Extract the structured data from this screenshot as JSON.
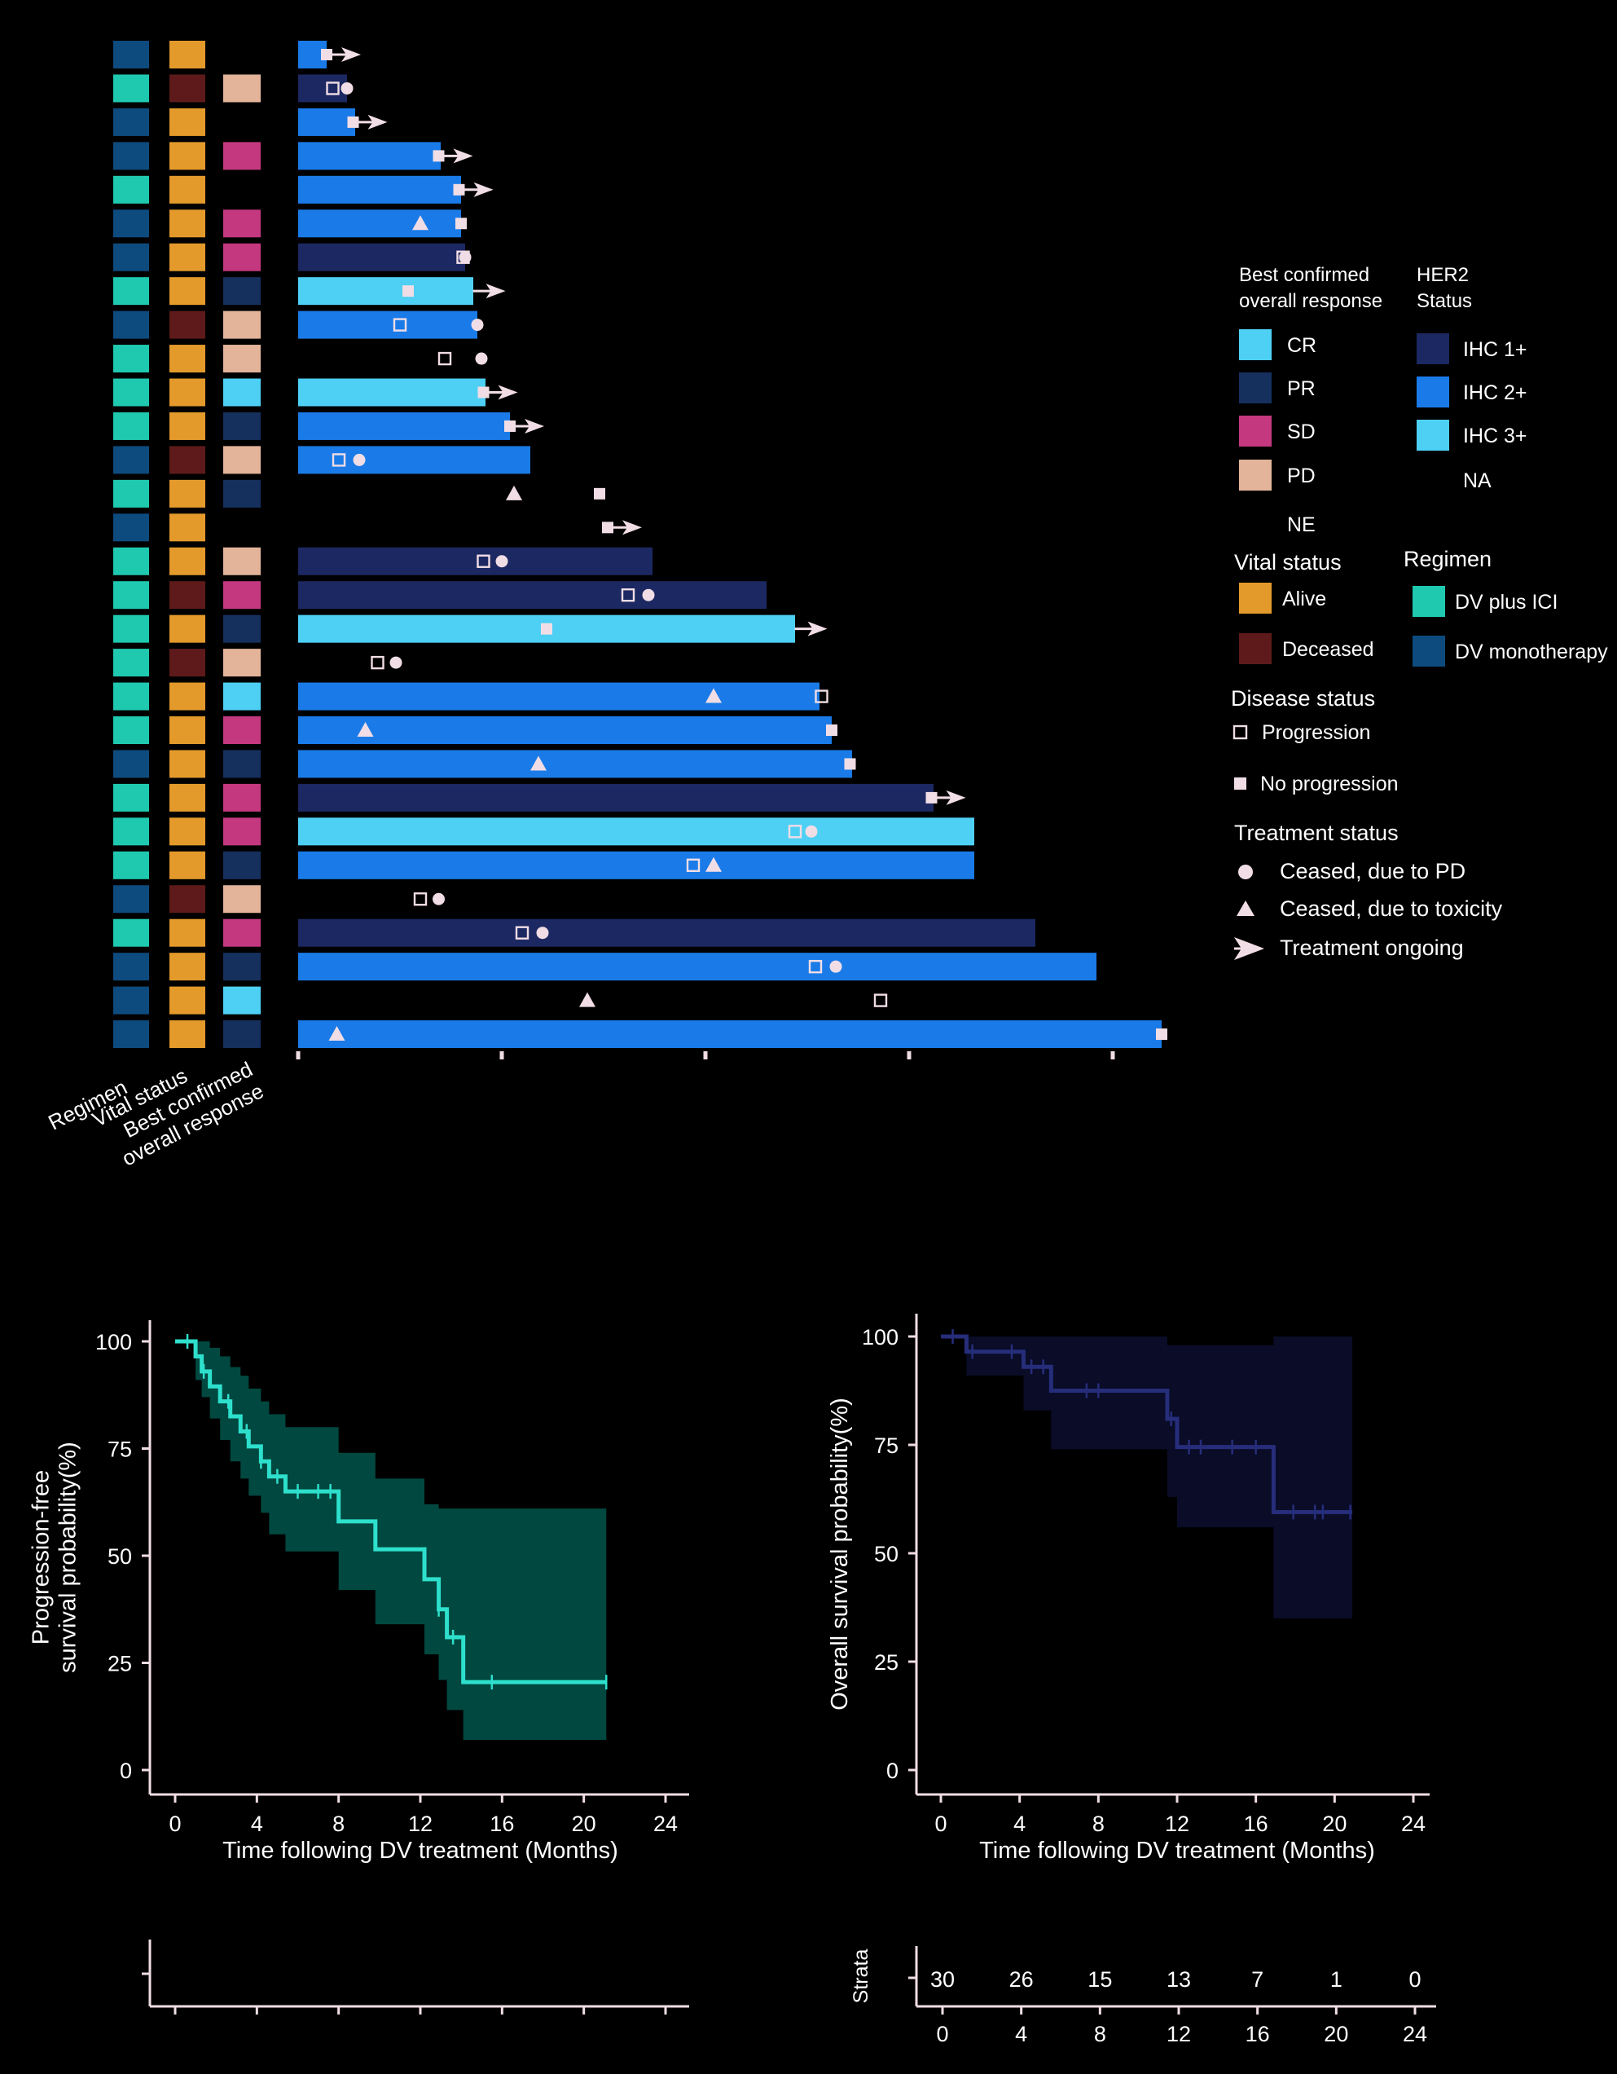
{
  "colors": {
    "background": "#000000",
    "CR": "#4ed0f5",
    "PR": "#16305e",
    "SD": "#c4387f",
    "PD": "#e3b49a",
    "IHC1": "#1c2862",
    "IHC2": "#1a7be8",
    "IHC3": "#4ed0f5",
    "Alive": "#e39a2b",
    "Deceased": "#5e1a1a",
    "DVplusICI": "#1fc9b0",
    "DVmono": "#0d4b7e",
    "marker": "#f1dde5",
    "pfs_line": "#2ee0cc",
    "pfs_band": "#004840",
    "os_line": "#262d7a",
    "os_band": "#0a0c28",
    "axis": "#f1dde5"
  },
  "swimmer": {
    "column_labels": [
      "Regimen",
      "Vital status",
      "Best confirmed overall response"
    ],
    "column_label_lines": {
      "regimen": [
        "Regimen"
      ],
      "vital": [
        "Vital status"
      ],
      "bor": [
        "Best confirmed",
        "overall response"
      ]
    },
    "axis_max": 22,
    "patients": [
      {
        "regimen": "DV monotherapy",
        "vital": "Alive",
        "bor": "NE",
        "her2": "IHC 2+",
        "duration": 0.7,
        "markers": [
          {
            "type": "sq_filled",
            "t": 0.7
          },
          {
            "type": "arrow",
            "t": 0.9
          }
        ]
      },
      {
        "regimen": "DV plus ICI",
        "vital": "Deceased",
        "bor": "PD",
        "her2": "IHC 1+",
        "duration": 1.2,
        "markers": [
          {
            "type": "sq_open",
            "t": 0.85
          },
          {
            "type": "circle",
            "t": 1.2
          }
        ]
      },
      {
        "regimen": "DV monotherapy",
        "vital": "Alive",
        "bor": "NE",
        "her2": "IHC 2+",
        "duration": 1.4,
        "markers": [
          {
            "type": "sq_filled",
            "t": 1.35
          },
          {
            "type": "arrow",
            "t": 1.55
          }
        ]
      },
      {
        "regimen": "DV monotherapy",
        "vital": "Alive",
        "bor": "SD",
        "her2": "IHC 2+",
        "duration": 3.5,
        "markers": [
          {
            "type": "sq_filled",
            "t": 3.45
          },
          {
            "type": "arrow",
            "t": 3.65
          }
        ]
      },
      {
        "regimen": "DV plus ICI",
        "vital": "Alive",
        "bor": "NE",
        "her2": "IHC 2+",
        "duration": 4.0,
        "markers": [
          {
            "type": "sq_filled",
            "t": 3.95
          },
          {
            "type": "arrow",
            "t": 4.15
          }
        ]
      },
      {
        "regimen": "DV monotherapy",
        "vital": "Alive",
        "bor": "SD",
        "her2": "IHC 2+",
        "duration": 4.0,
        "markers": [
          {
            "type": "triangle",
            "t": 3.0
          },
          {
            "type": "sq_filled",
            "t": 4.0
          }
        ]
      },
      {
        "regimen": "DV monotherapy",
        "vital": "Alive",
        "bor": "SD",
        "her2": "IHC 1+",
        "duration": 4.1,
        "markers": [
          {
            "type": "sq_open",
            "t": 4.05
          },
          {
            "type": "circle",
            "t": 4.1
          }
        ]
      },
      {
        "regimen": "DV plus ICI",
        "vital": "Alive",
        "bor": "PR",
        "her2": "IHC 3+",
        "duration": 4.3,
        "markers": [
          {
            "type": "sq_filled",
            "t": 2.7
          },
          {
            "type": "arrow",
            "t": 4.45
          }
        ]
      },
      {
        "regimen": "DV monotherapy",
        "vital": "Deceased",
        "bor": "PD",
        "her2": "IHC 2+",
        "duration": 4.4,
        "markers": [
          {
            "type": "sq_open",
            "t": 2.5
          },
          {
            "type": "circle",
            "t": 4.4
          }
        ]
      },
      {
        "regimen": "DV plus ICI",
        "vital": "Alive",
        "bor": "PD",
        "her2": "NA",
        "duration": 0,
        "markers": [
          {
            "type": "sq_open",
            "t": 3.6
          },
          {
            "type": "circle",
            "t": 4.5
          }
        ]
      },
      {
        "regimen": "DV plus ICI",
        "vital": "Alive",
        "bor": "CR",
        "her2": "IHC 3+",
        "duration": 4.6,
        "markers": [
          {
            "type": "sq_filled",
            "t": 4.55
          },
          {
            "type": "arrow",
            "t": 4.75
          }
        ]
      },
      {
        "regimen": "DV plus ICI",
        "vital": "Alive",
        "bor": "PR",
        "her2": "IHC 2+",
        "duration": 5.2,
        "markers": [
          {
            "type": "sq_filled",
            "t": 5.2
          },
          {
            "type": "arrow",
            "t": 5.4
          }
        ]
      },
      {
        "regimen": "DV monotherapy",
        "vital": "Deceased",
        "bor": "PD",
        "her2": "IHC 2+",
        "duration": 5.7,
        "markers": [
          {
            "type": "sq_open",
            "t": 1.0
          },
          {
            "type": "circle",
            "t": 1.5
          }
        ]
      },
      {
        "regimen": "DV plus ICI",
        "vital": "Alive",
        "bor": "PR",
        "her2": "NA",
        "duration": 0,
        "markers": [
          {
            "type": "triangle",
            "t": 5.3
          },
          {
            "type": "sq_filled",
            "t": 7.4
          }
        ]
      },
      {
        "regimen": "DV monotherapy",
        "vital": "Alive",
        "bor": "NE",
        "her2": "NA",
        "duration": 0,
        "markers": [
          {
            "type": "sq_filled",
            "t": 7.6
          },
          {
            "type": "arrow",
            "t": 7.8
          }
        ]
      },
      {
        "regimen": "DV plus ICI",
        "vital": "Alive",
        "bor": "PD",
        "her2": "IHC 1+",
        "duration": 8.7,
        "markers": [
          {
            "type": "sq_open",
            "t": 4.55
          },
          {
            "type": "circle",
            "t": 5.0
          }
        ]
      },
      {
        "regimen": "DV plus ICI",
        "vital": "Deceased",
        "bor": "SD",
        "her2": "IHC 1+",
        "duration": 11.5,
        "markers": [
          {
            "type": "sq_open",
            "t": 8.1
          },
          {
            "type": "circle",
            "t": 8.6
          }
        ]
      },
      {
        "regimen": "DV plus ICI",
        "vital": "Alive",
        "bor": "PR",
        "her2": "IHC 3+",
        "duration": 12.2,
        "markers": [
          {
            "type": "sq_filled",
            "t": 6.1
          },
          {
            "type": "arrow",
            "t": 12.35
          }
        ]
      },
      {
        "regimen": "DV plus ICI",
        "vital": "Deceased",
        "bor": "PD",
        "her2": "NA",
        "duration": 0,
        "markers": [
          {
            "type": "sq_open",
            "t": 1.95
          },
          {
            "type": "circle",
            "t": 2.4
          }
        ]
      },
      {
        "regimen": "DV plus ICI",
        "vital": "Alive",
        "bor": "CR",
        "her2": "IHC 2+",
        "duration": 12.8,
        "markers": [
          {
            "type": "triangle",
            "t": 10.2
          },
          {
            "type": "sq_open",
            "t": 12.85
          }
        ]
      },
      {
        "regimen": "DV plus ICI",
        "vital": "Alive",
        "bor": "SD",
        "her2": "IHC 2+",
        "duration": 13.1,
        "markers": [
          {
            "type": "triangle",
            "t": 1.65
          },
          {
            "type": "sq_filled",
            "t": 13.1
          }
        ]
      },
      {
        "regimen": "DV monotherapy",
        "vital": "Alive",
        "bor": "PR",
        "her2": "IHC 2+",
        "duration": 13.6,
        "markers": [
          {
            "type": "triangle",
            "t": 5.9
          },
          {
            "type": "sq_filled",
            "t": 13.55
          }
        ]
      },
      {
        "regimen": "DV plus ICI",
        "vital": "Alive",
        "bor": "SD",
        "her2": "IHC 1+",
        "duration": 15.6,
        "markers": [
          {
            "type": "sq_filled",
            "t": 15.55
          },
          {
            "type": "arrow",
            "t": 15.75
          }
        ]
      },
      {
        "regimen": "DV plus ICI",
        "vital": "Alive",
        "bor": "SD",
        "her2": "IHC 3+",
        "duration": 16.6,
        "markers": [
          {
            "type": "sq_open",
            "t": 12.2
          },
          {
            "type": "circle",
            "t": 12.6
          }
        ]
      },
      {
        "regimen": "DV plus ICI",
        "vital": "Alive",
        "bor": "PR",
        "her2": "IHC 2+",
        "duration": 16.6,
        "markers": [
          {
            "type": "sq_open",
            "t": 9.7
          },
          {
            "type": "triangle",
            "t": 10.2
          }
        ]
      },
      {
        "regimen": "DV monotherapy",
        "vital": "Deceased",
        "bor": "PD",
        "her2": "NA",
        "duration": 0,
        "markers": [
          {
            "type": "sq_open",
            "t": 3.0
          },
          {
            "type": "circle",
            "t": 3.45
          }
        ]
      },
      {
        "regimen": "DV plus ICI",
        "vital": "Alive",
        "bor": "SD",
        "her2": "IHC 1+",
        "duration": 18.1,
        "markers": [
          {
            "type": "sq_open",
            "t": 5.5
          },
          {
            "type": "circle",
            "t": 6.0
          }
        ]
      },
      {
        "regimen": "DV monotherapy",
        "vital": "Alive",
        "bor": "PR",
        "her2": "IHC 2+",
        "duration": 19.6,
        "markers": [
          {
            "type": "sq_open",
            "t": 12.7
          },
          {
            "type": "circle",
            "t": 13.2
          }
        ]
      },
      {
        "regimen": "DV monotherapy",
        "vital": "Alive",
        "bor": "CR",
        "her2": "NA",
        "duration": 0,
        "markers": [
          {
            "type": "triangle",
            "t": 7.1
          },
          {
            "type": "sq_open",
            "t": 14.3
          }
        ]
      },
      {
        "regimen": "DV monotherapy",
        "vital": "Alive",
        "bor": "PR",
        "her2": "IHC 2+",
        "duration": 21.2,
        "markers": [
          {
            "type": "triangle",
            "t": 0.95
          },
          {
            "type": "sq_filled",
            "t": 21.2
          }
        ]
      }
    ]
  },
  "legend": {
    "bor_title": [
      "Best confirmed",
      "overall response"
    ],
    "bor_items": [
      "CR",
      "PR",
      "SD",
      "PD",
      "NE"
    ],
    "her2_title": [
      "HER2",
      "Status"
    ],
    "her2_items": [
      "IHC 1+",
      "IHC 2+",
      "IHC 3+",
      "NA"
    ],
    "vital_title": "Vital status",
    "vital_items": [
      "Alive",
      "Deceased"
    ],
    "regimen_title": "Regimen",
    "regimen_items": [
      "DV plus ICI",
      "DV monotherapy"
    ],
    "disease_title": "Disease status",
    "disease_items": [
      "Progression",
      "No progression"
    ],
    "treatment_title": "Treatment status",
    "treatment_items": [
      "Ceased, due to PD",
      "Ceased, due to toxicity",
      "Treatment ongoing"
    ]
  },
  "chart_data": [
    {
      "type": "line",
      "title": "",
      "xlabel": "Time following DV treatment (Months)",
      "ylabel": [
        "Progression-free",
        "survival probability(%)"
      ],
      "xlim": [
        0,
        24
      ],
      "ylim": [
        0,
        100
      ],
      "xticks": [
        0,
        4,
        8,
        12,
        16,
        20,
        24
      ],
      "yticks": [
        0,
        25,
        50,
        75,
        100
      ],
      "series": [
        {
          "name": "PFS",
          "step_x": [
            0,
            1.0,
            1.3,
            1.7,
            2.2,
            2.7,
            3.2,
            3.6,
            4.2,
            4.6,
            5.4,
            8.0,
            9.8,
            12.2,
            12.9,
            13.3,
            14.1,
            21.1
          ],
          "step_y": [
            100,
            96.5,
            93,
            89.5,
            86,
            82.5,
            79,
            75.5,
            72,
            68.5,
            65,
            58,
            51.5,
            44.5,
            37.5,
            31,
            20.5,
            20.5
          ],
          "ci_upper": [
            100,
            100,
            100,
            98.5,
            96.5,
            94,
            92,
            89,
            86,
            83,
            80,
            74,
            68,
            62,
            61,
            61,
            61,
            61
          ],
          "ci_lower": [
            100,
            91,
            87,
            82,
            77,
            72,
            68,
            64,
            60,
            55,
            51,
            42,
            34,
            27,
            21,
            14,
            7,
            7
          ],
          "censor_x": [
            0.6,
            1.4,
            2.6,
            3.5,
            4.2,
            5.0,
            6.0,
            7.0,
            7.6,
            12.9,
            13.6,
            15.5,
            21.1
          ]
        }
      ]
    },
    {
      "type": "line",
      "title": "",
      "xlabel": "Time following DV treatment (Months)",
      "ylabel": [
        "Overall survival probability(%)"
      ],
      "xlim": [
        0,
        24
      ],
      "ylim": [
        0,
        100
      ],
      "xticks": [
        0,
        4,
        8,
        12,
        16,
        20,
        24
      ],
      "yticks": [
        0,
        25,
        50,
        75,
        100
      ],
      "series": [
        {
          "name": "OS",
          "step_x": [
            0,
            1.3,
            4.2,
            5.6,
            11.5,
            12.0,
            16.9,
            20.9
          ],
          "step_y": [
            100,
            96.5,
            93,
            87.5,
            81,
            74.5,
            59.5,
            59.5
          ],
          "ci_upper": [
            100,
            100,
            100,
            100,
            98,
            98,
            100,
            100
          ],
          "ci_lower": [
            100,
            91,
            83,
            74,
            63,
            56,
            35,
            35
          ],
          "censor_x": [
            0.6,
            1.6,
            3.6,
            4.6,
            5.2,
            7.4,
            8.0,
            11.7,
            12.6,
            13.2,
            14.8,
            16.0,
            17.9,
            19.0,
            19.4,
            20.8
          ]
        }
      ]
    },
    {
      "type": "table",
      "title": "Strata",
      "ylabel": "Strata",
      "xticks": [
        0,
        4,
        8,
        12,
        16,
        20,
        24
      ],
      "counts": [
        30,
        26,
        15,
        13,
        7,
        1,
        0
      ]
    }
  ]
}
